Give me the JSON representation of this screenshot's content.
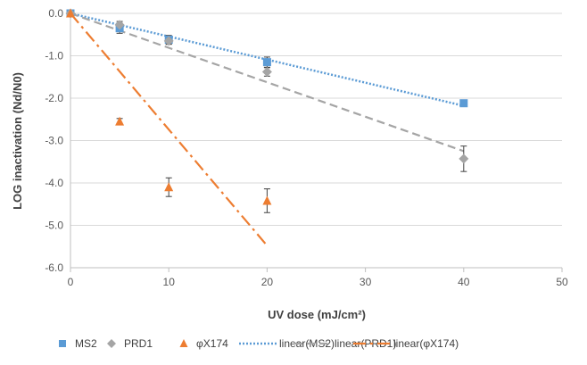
{
  "chart_data": {
    "type": "scatter",
    "title": "",
    "xlabel": "UV dose (mJ/cm²)",
    "ylabel": "LOG inactivation (Nd/N0)",
    "xlim": [
      0,
      50
    ],
    "ylim": [
      -6,
      0
    ],
    "x_ticks": [
      "0",
      "10",
      "20",
      "30",
      "40",
      "50"
    ],
    "y_ticks": [
      "0.0",
      "-1.0",
      "-2.0",
      "-3.0",
      "-4.0",
      "-5.0",
      "-6.0"
    ],
    "grid": "horizontal",
    "legend_position": "bottom",
    "series": [
      {
        "name": "MS2",
        "marker": "square",
        "color": "#5b9bd5",
        "points": [
          {
            "x": 0,
            "y": 0.0,
            "err": 0.05
          },
          {
            "x": 5,
            "y": -0.35,
            "err": 0.12
          },
          {
            "x": 10,
            "y": -0.62,
            "err": 0.1
          },
          {
            "x": 20,
            "y": -1.15,
            "err": 0.12
          },
          {
            "x": 40,
            "y": -2.12,
            "err": 0.07
          }
        ]
      },
      {
        "name": "PRD1",
        "marker": "diamond",
        "color": "#a5a5a5",
        "points": [
          {
            "x": 0,
            "y": 0.0,
            "err": 0.05
          },
          {
            "x": 5,
            "y": -0.27,
            "err": 0.08
          },
          {
            "x": 10,
            "y": -0.65,
            "err": 0.08
          },
          {
            "x": 20,
            "y": -1.38,
            "err": 0.1
          },
          {
            "x": 40,
            "y": -3.43,
            "err": 0.3
          }
        ]
      },
      {
        "name": "φX174",
        "marker": "triangle",
        "color": "#ed7d31",
        "points": [
          {
            "x": 0,
            "y": 0.0,
            "err": 0.05
          },
          {
            "x": 5,
            "y": -2.55,
            "err": 0.07
          },
          {
            "x": 10,
            "y": -4.1,
            "err": 0.22
          },
          {
            "x": 20,
            "y": -4.42,
            "err": 0.28
          }
        ]
      }
    ],
    "trendlines": [
      {
        "name": "linear(MS2)",
        "style": "dotted",
        "color": "#5b9bd5",
        "from": [
          0,
          0
        ],
        "to": [
          40,
          -2.18
        ]
      },
      {
        "name": "linear(PRD1)",
        "style": "dashed",
        "color": "#a5a5a5",
        "from": [
          0,
          0
        ],
        "to": [
          40,
          -3.25
        ]
      },
      {
        "name": "linear(φX174)",
        "style": "dashdot",
        "color": "#ed7d31",
        "from": [
          0,
          0
        ],
        "to": [
          20,
          -5.48
        ]
      }
    ]
  }
}
